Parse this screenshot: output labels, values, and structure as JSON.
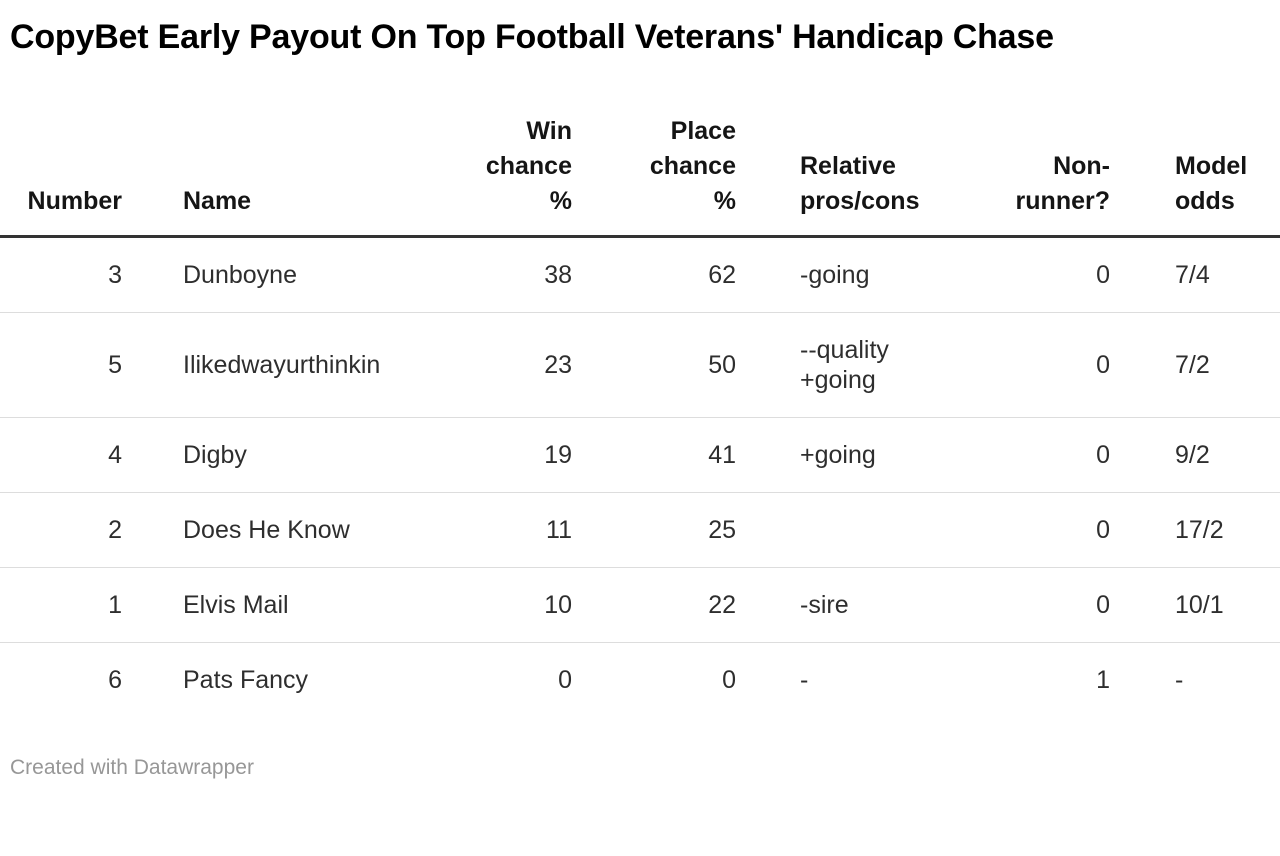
{
  "title": "CopyBet Early Payout On Top Football Veterans' Handicap Chase",
  "chart_data": {
    "type": "table",
    "title": "CopyBet Early Payout On Top Football Veterans' Handicap Chase",
    "columns": [
      {
        "label": "Number",
        "align": "right"
      },
      {
        "label": "Name",
        "align": "left"
      },
      {
        "label": "Win chance %",
        "align": "right"
      },
      {
        "label": "Place chance %",
        "align": "right"
      },
      {
        "label": "Relative pros/cons",
        "align": "left"
      },
      {
        "label": "Non-runner?",
        "align": "right"
      },
      {
        "label": "Model odds",
        "align": "left"
      }
    ],
    "rows": [
      [
        "3",
        "Dunboyne",
        "38",
        "62",
        "-going",
        "0",
        "7/4"
      ],
      [
        "5",
        "Ilikedwayurthinkin",
        "23",
        "50",
        "--quality\n+going",
        "0",
        "7/2"
      ],
      [
        "4",
        "Digby",
        "19",
        "41",
        "+going",
        "0",
        "9/2"
      ],
      [
        "2",
        "Does He Know",
        "11",
        "25",
        "",
        "0",
        "17/2"
      ],
      [
        "1",
        "Elvis Mail",
        "10",
        "22",
        "-sire",
        "0",
        "10/1"
      ],
      [
        "6",
        "Pats Fancy",
        "0",
        "0",
        "-",
        "1",
        "-"
      ]
    ],
    "layout_hints": {
      "header_rule": "thick dark line under header",
      "row_dividers": "thin light gray lines",
      "last_column_clipped_at_right_edge": true
    }
  },
  "footer": {
    "credit": "Created with Datawrapper"
  },
  "colors": {
    "title_text": "#000000",
    "header_text": "#151515",
    "body_text": "#2e2e2e",
    "header_rule": "#333333",
    "row_divider": "#dddddd",
    "credit_text": "#979797",
    "background": "#ffffff"
  }
}
